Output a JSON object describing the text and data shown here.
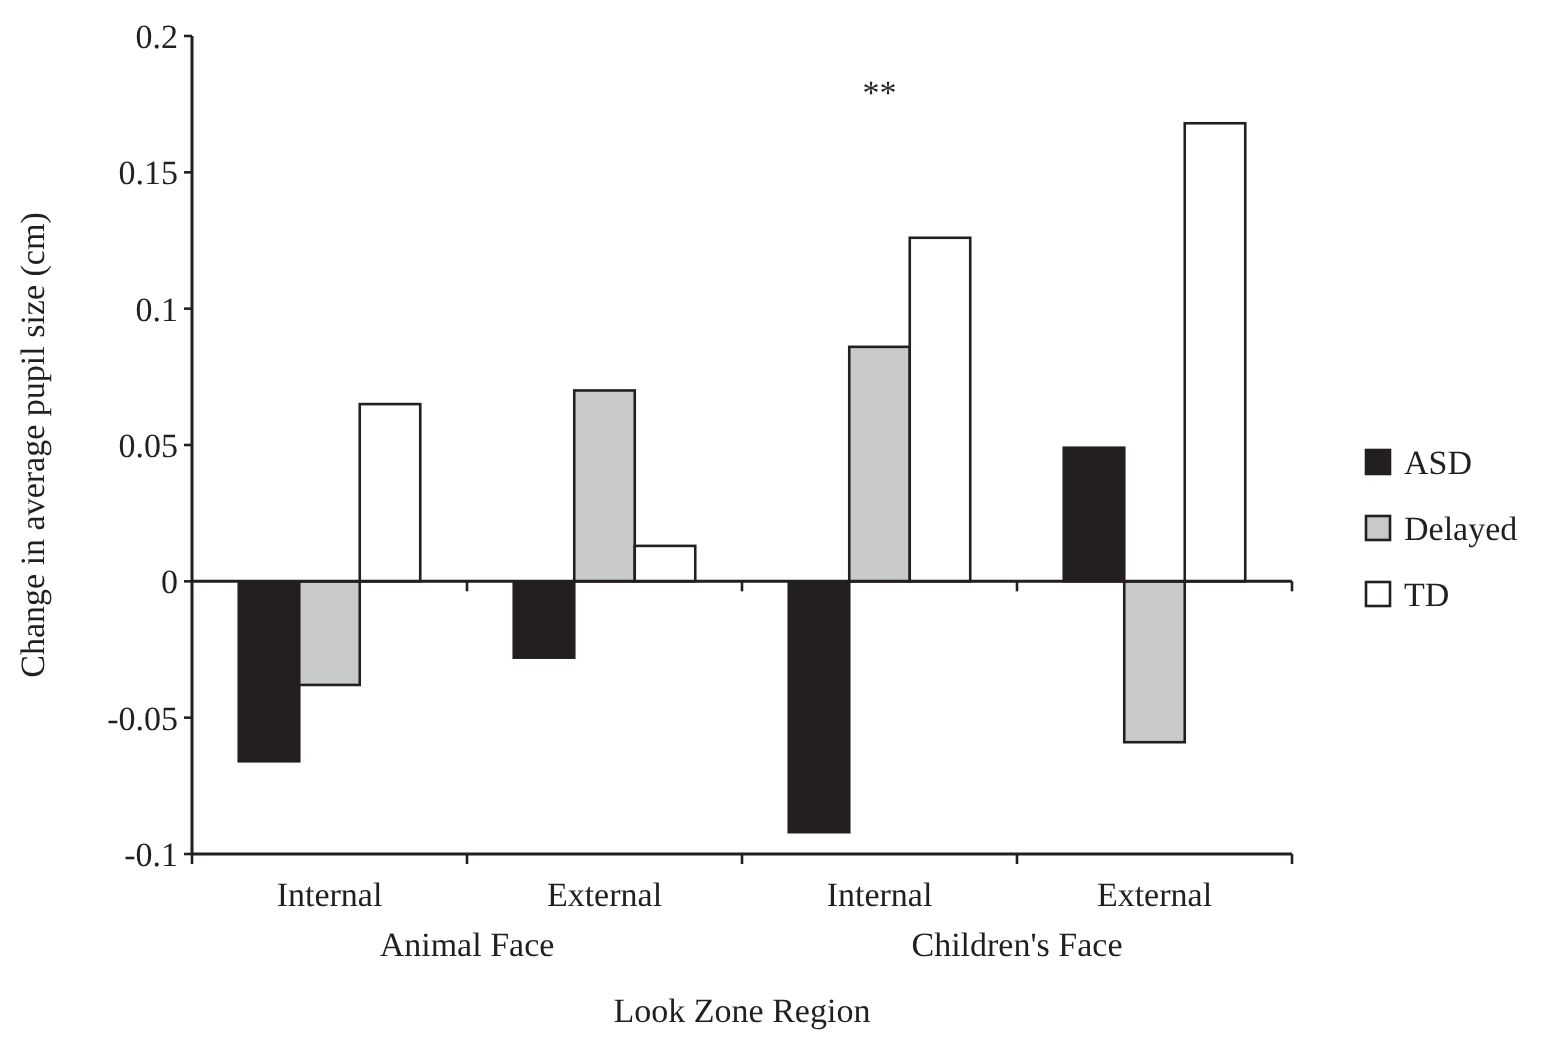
{
  "chart_data": {
    "type": "bar",
    "xlabel": "Look Zone Region",
    "ylabel": "Change in average pupil size (cm)",
    "categories": [
      "Internal",
      "External",
      "Internal",
      "External"
    ],
    "series": [
      {
        "name": "ASD",
        "color": "#231f20",
        "values": [
          -0.066,
          -0.028,
          -0.092,
          0.049
        ]
      },
      {
        "name": "Delayed",
        "color": "#c8c9ca",
        "values": [
          -0.038,
          0.07,
          0.086,
          -0.059
        ]
      },
      {
        "name": "TD",
        "color": "#ffffff",
        "values": [
          0.065,
          0.013,
          0.126,
          0.168
        ]
      }
    ],
    "ylim": [
      -0.1,
      0.2
    ],
    "yticks": [
      -0.1,
      -0.05,
      0,
      0.05,
      0.1,
      0.15,
      0.2
    ],
    "annotations": [
      "Animal Face",
      "Children's Face",
      "**"
    ],
    "legend": "right"
  }
}
